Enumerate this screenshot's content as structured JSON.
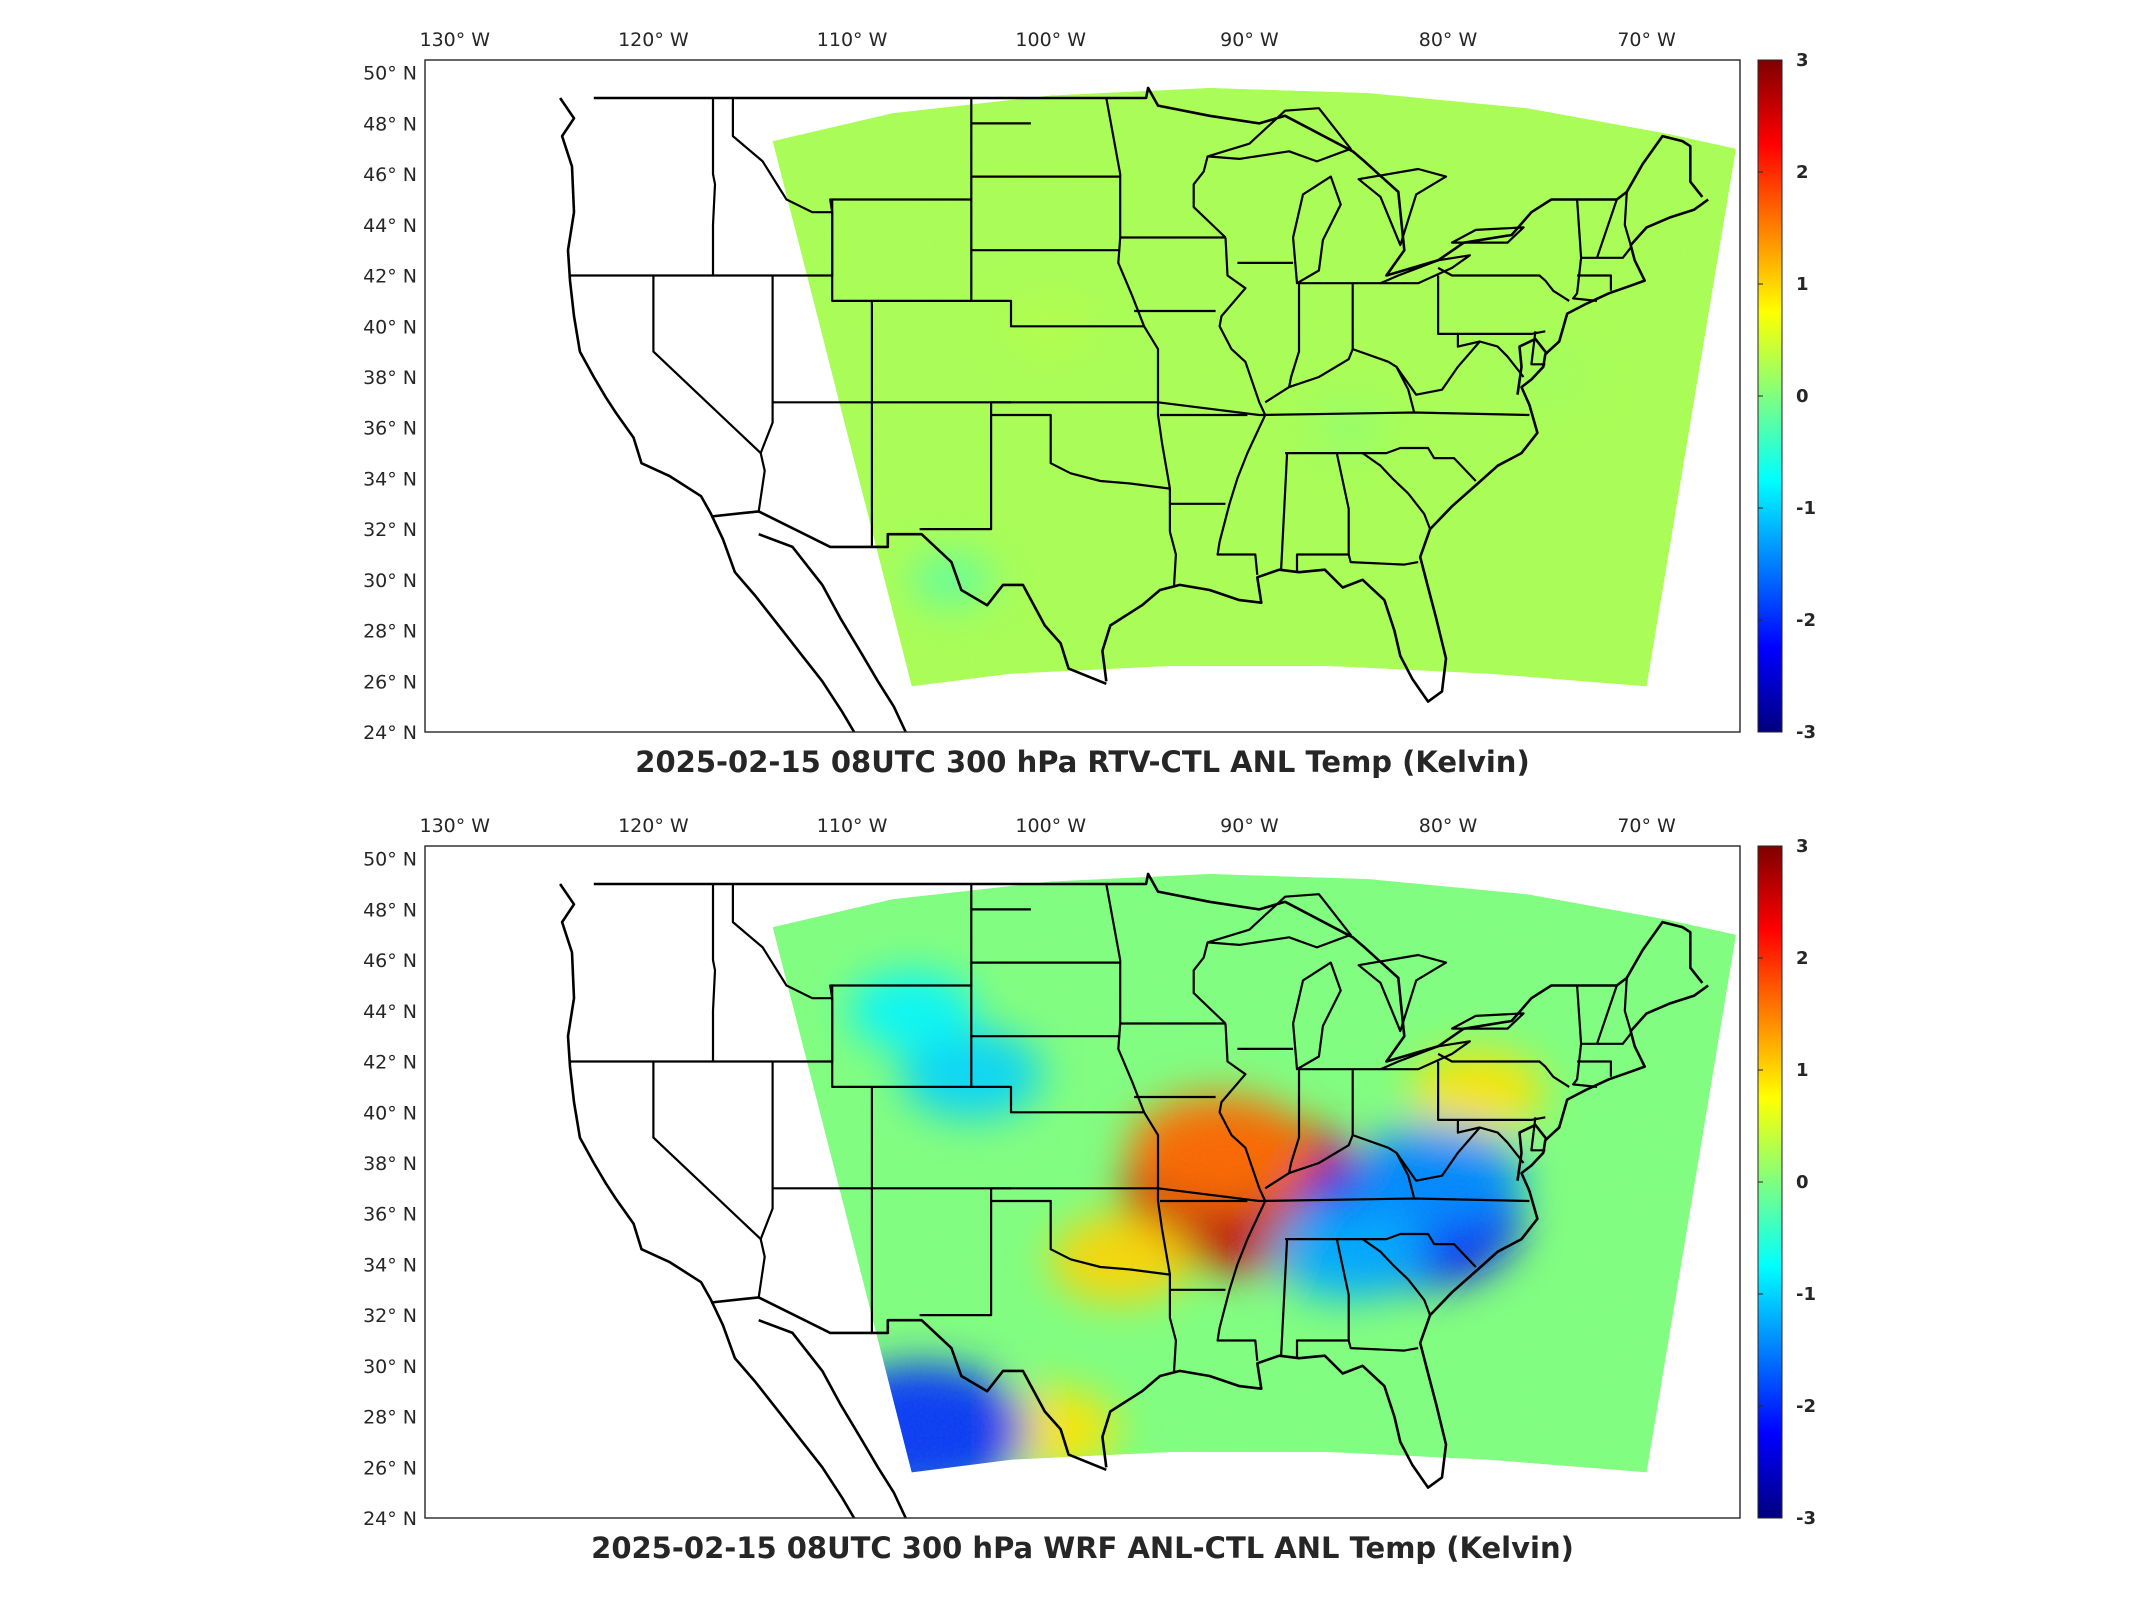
{
  "chart_data": [
    {
      "type": "heatmap",
      "title": "2025-02-15 08UTC 300 hPa RTV-CTL ANL Temp (Kelvin)",
      "x_ticks": [
        "130° W",
        "120° W",
        "110° W",
        "100° W",
        "90° W",
        "80° W",
        "70° W"
      ],
      "y_ticks": [
        "50° N",
        "48° N",
        "46° N",
        "44° N",
        "42° N",
        "40° N",
        "38° N",
        "36° N",
        "34° N",
        "32° N",
        "30° N",
        "28° N",
        "26° N",
        "24° N"
      ],
      "colorbar": {
        "min": -3,
        "max": 3,
        "ticks": [
          "3",
          "2",
          "1",
          "0",
          "-1",
          "-2",
          "-3"
        ],
        "colormap": "jet"
      },
      "field_summary": "Near-uniform small positive differences (about 0 to +0.5 K) across the domain",
      "features": [
        {
          "lon": -100,
          "lat": 40,
          "value": 0.3
        },
        {
          "lon": -85,
          "lat": 36,
          "value": 0.1
        },
        {
          "lon": -75,
          "lat": 38,
          "value": 0.2
        },
        {
          "lon": -105,
          "lat": 30,
          "value": -0.2
        }
      ]
    },
    {
      "type": "heatmap",
      "title": "2025-02-15 08UTC 300 hPa WRF ANL-CTL ANL Temp (Kelvin)",
      "x_ticks": [
        "130° W",
        "120° W",
        "110° W",
        "100° W",
        "90° W",
        "80° W",
        "70° W"
      ],
      "y_ticks": [
        "50° N",
        "48° N",
        "46° N",
        "44° N",
        "42° N",
        "40° N",
        "38° N",
        "36° N",
        "34° N",
        "32° N",
        "30° N",
        "28° N",
        "26° N",
        "24° N"
      ],
      "colorbar": {
        "min": -3,
        "max": 3,
        "ticks": [
          "3",
          "2",
          "1",
          "0",
          "-1",
          "-2",
          "-3"
        ],
        "colormap": "jet"
      },
      "field_summary": "Warm anomaly over the mid-Mississippi valley, cold anomalies over the southern Appalachians and the far southwest of the domain",
      "features": [
        {
          "lon": -90,
          "lat": 36.8,
          "value": 2.6
        },
        {
          "lon": -91.5,
          "lat": 38.5,
          "value": 1.6
        },
        {
          "lon": -96.5,
          "lat": 34.2,
          "value": 1.0
        },
        {
          "lon": -100,
          "lat": 27.5,
          "value": 0.9
        },
        {
          "lon": -78.5,
          "lat": 40.8,
          "value": 0.9
        },
        {
          "lon": -82,
          "lat": 35.8,
          "value": -2.2
        },
        {
          "lon": -80.5,
          "lat": 37.5,
          "value": -1.4
        },
        {
          "lon": -85,
          "lat": 34.5,
          "value": -1.2
        },
        {
          "lon": -106.5,
          "lat": 27.5,
          "value": -2.0
        },
        {
          "lon": -104,
          "lat": 41.5,
          "value": -1.0
        },
        {
          "lon": -107,
          "lat": 44,
          "value": -0.8
        }
      ]
    }
  ]
}
